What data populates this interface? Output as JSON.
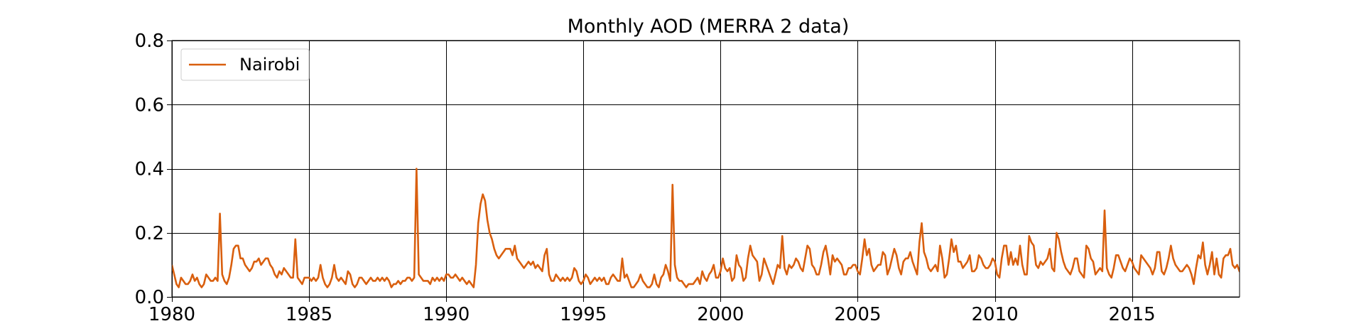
{
  "chart_data": {
    "type": "line",
    "title": "Monthly AOD (MERRA 2 data)",
    "xlabel": "",
    "ylabel": "",
    "xlim": [
      1980,
      2018.92
    ],
    "ylim": [
      0,
      0.8
    ],
    "x_ticks": [
      1980,
      1985,
      1990,
      1995,
      2000,
      2005,
      2010,
      2015
    ],
    "x_tick_labels": [
      "1980",
      "1985",
      "1990",
      "1995",
      "2000",
      "2005",
      "2010",
      "2015"
    ],
    "y_ticks": [
      0.0,
      0.2,
      0.4,
      0.6,
      0.8
    ],
    "y_tick_labels": [
      "0.0",
      "0.2",
      "0.4",
      "0.6",
      "0.8"
    ],
    "grid": true,
    "legend_position": "top-left",
    "x_start": "1980-01",
    "x_step": "monthly",
    "series": [
      {
        "name": "Nairobi",
        "color": "#d95f0e",
        "values": [
          0.1,
          0.07,
          0.04,
          0.03,
          0.06,
          0.05,
          0.04,
          0.04,
          0.05,
          0.07,
          0.05,
          0.06,
          0.04,
          0.03,
          0.04,
          0.07,
          0.06,
          0.05,
          0.05,
          0.06,
          0.05,
          0.26,
          0.07,
          0.05,
          0.04,
          0.06,
          0.1,
          0.15,
          0.16,
          0.16,
          0.12,
          0.12,
          0.1,
          0.09,
          0.08,
          0.09,
          0.11,
          0.11,
          0.12,
          0.1,
          0.11,
          0.12,
          0.12,
          0.1,
          0.09,
          0.07,
          0.06,
          0.08,
          0.07,
          0.09,
          0.08,
          0.07,
          0.06,
          0.06,
          0.18,
          0.06,
          0.05,
          0.04,
          0.06,
          0.06,
          0.06,
          0.05,
          0.06,
          0.05,
          0.06,
          0.1,
          0.06,
          0.04,
          0.03,
          0.04,
          0.06,
          0.1,
          0.06,
          0.05,
          0.06,
          0.05,
          0.04,
          0.08,
          0.07,
          0.04,
          0.03,
          0.04,
          0.06,
          0.06,
          0.05,
          0.04,
          0.05,
          0.06,
          0.05,
          0.05,
          0.06,
          0.05,
          0.06,
          0.05,
          0.06,
          0.05,
          0.03,
          0.04,
          0.04,
          0.05,
          0.04,
          0.05,
          0.05,
          0.06,
          0.06,
          0.05,
          0.06,
          0.4,
          0.07,
          0.06,
          0.05,
          0.05,
          0.05,
          0.04,
          0.06,
          0.05,
          0.06,
          0.05,
          0.06,
          0.05,
          0.07,
          0.07,
          0.06,
          0.06,
          0.07,
          0.06,
          0.05,
          0.06,
          0.05,
          0.04,
          0.05,
          0.04,
          0.03,
          0.1,
          0.23,
          0.29,
          0.32,
          0.3,
          0.24,
          0.2,
          0.18,
          0.15,
          0.13,
          0.12,
          0.13,
          0.14,
          0.15,
          0.15,
          0.15,
          0.13,
          0.16,
          0.12,
          0.11,
          0.1,
          0.09,
          0.1,
          0.11,
          0.1,
          0.11,
          0.09,
          0.1,
          0.09,
          0.08,
          0.13,
          0.15,
          0.07,
          0.05,
          0.05,
          0.07,
          0.06,
          0.05,
          0.06,
          0.05,
          0.06,
          0.05,
          0.06,
          0.09,
          0.08,
          0.05,
          0.04,
          0.05,
          0.07,
          0.06,
          0.04,
          0.05,
          0.06,
          0.05,
          0.06,
          0.05,
          0.06,
          0.04,
          0.04,
          0.06,
          0.07,
          0.06,
          0.05,
          0.05,
          0.12,
          0.06,
          0.07,
          0.05,
          0.03,
          0.03,
          0.04,
          0.05,
          0.07,
          0.05,
          0.04,
          0.03,
          0.03,
          0.04,
          0.07,
          0.04,
          0.03,
          0.06,
          0.07,
          0.1,
          0.08,
          0.05,
          0.35,
          0.1,
          0.06,
          0.05,
          0.05,
          0.04,
          0.03,
          0.04,
          0.04,
          0.04,
          0.05,
          0.06,
          0.04,
          0.08,
          0.06,
          0.05,
          0.07,
          0.08,
          0.1,
          0.06,
          0.06,
          0.08,
          0.12,
          0.09,
          0.08,
          0.09,
          0.05,
          0.06,
          0.13,
          0.1,
          0.09,
          0.05,
          0.06,
          0.12,
          0.16,
          0.13,
          0.12,
          0.11,
          0.05,
          0.07,
          0.12,
          0.1,
          0.08,
          0.06,
          0.04,
          0.07,
          0.1,
          0.09,
          0.19,
          0.09,
          0.07,
          0.1,
          0.09,
          0.1,
          0.12,
          0.11,
          0.09,
          0.08,
          0.12,
          0.16,
          0.15,
          0.1,
          0.09,
          0.07,
          0.07,
          0.1,
          0.14,
          0.16,
          0.12,
          0.07,
          0.13,
          0.11,
          0.12,
          0.11,
          0.1,
          0.07,
          0.07,
          0.09,
          0.09,
          0.1,
          0.1,
          0.08,
          0.07,
          0.12,
          0.18,
          0.13,
          0.15,
          0.1,
          0.08,
          0.09,
          0.1,
          0.1,
          0.14,
          0.13,
          0.07,
          0.09,
          0.12,
          0.15,
          0.13,
          0.09,
          0.07,
          0.11,
          0.12,
          0.12,
          0.14,
          0.11,
          0.09,
          0.07,
          0.17,
          0.23,
          0.14,
          0.12,
          0.09,
          0.08,
          0.09,
          0.1,
          0.08,
          0.16,
          0.12,
          0.06,
          0.07,
          0.12,
          0.18,
          0.14,
          0.16,
          0.11,
          0.11,
          0.09,
          0.1,
          0.11,
          0.13,
          0.08,
          0.08,
          0.09,
          0.13,
          0.12,
          0.1,
          0.09,
          0.09,
          0.1,
          0.12,
          0.11,
          0.07,
          0.06,
          0.12,
          0.16,
          0.16,
          0.1,
          0.14,
          0.1,
          0.12,
          0.1,
          0.16,
          0.1,
          0.07,
          0.07,
          0.19,
          0.17,
          0.16,
          0.1,
          0.09,
          0.11,
          0.1,
          0.11,
          0.12,
          0.15,
          0.09,
          0.08,
          0.2,
          0.18,
          0.14,
          0.11,
          0.09,
          0.08,
          0.07,
          0.09,
          0.12,
          0.12,
          0.08,
          0.07,
          0.06,
          0.16,
          0.15,
          0.12,
          0.11,
          0.07,
          0.08,
          0.09,
          0.08,
          0.27,
          0.09,
          0.07,
          0.06,
          0.09,
          0.13,
          0.13,
          0.11,
          0.09,
          0.08,
          0.1,
          0.12,
          0.11,
          0.09,
          0.08,
          0.07,
          0.13,
          0.12,
          0.11,
          0.1,
          0.09,
          0.07,
          0.09,
          0.14,
          0.14,
          0.08,
          0.07,
          0.09,
          0.12,
          0.16,
          0.12,
          0.1,
          0.09,
          0.08,
          0.08,
          0.09,
          0.1,
          0.09,
          0.07,
          0.04,
          0.09,
          0.13,
          0.12,
          0.17,
          0.1,
          0.07,
          0.1,
          0.14,
          0.07,
          0.12,
          0.07,
          0.06,
          0.12,
          0.13,
          0.13,
          0.15,
          0.1,
          0.09,
          0.1,
          0.08,
          0.07,
          0.07,
          0.07,
          0.08
        ]
      }
    ]
  }
}
